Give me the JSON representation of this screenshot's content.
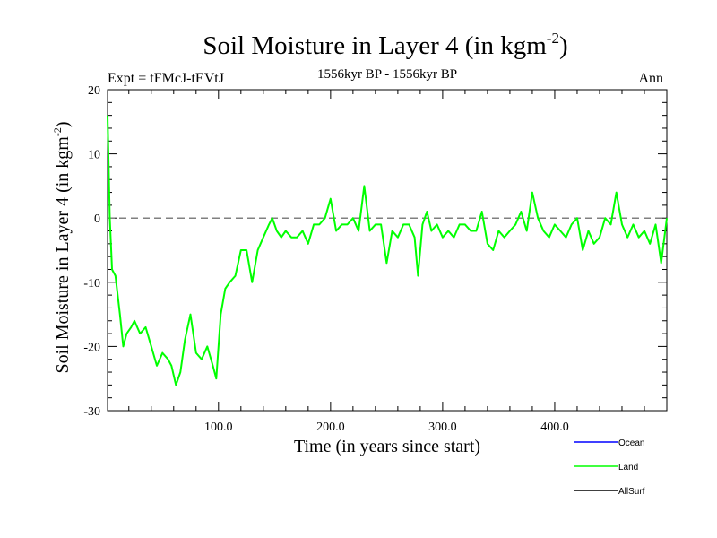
{
  "chart_data": {
    "type": "line",
    "title": "Soil Moisture in Layer 4 (in kgm",
    "title_sup": "-2",
    "title_close": ")",
    "subtitle_left": "Expt = tFMcJ-tEVtJ",
    "subtitle_center": "1556kyr BP - 1556kyr BP",
    "subtitle_right": "Ann",
    "xlabel": "Time (in years since start)",
    "ylabel": "Soil Moisture in Layer 4 (in kgm",
    "ylabel_sup": "-2",
    "ylabel_close": ")",
    "xlim": [
      1,
      500
    ],
    "ylim": [
      -30,
      20
    ],
    "x_ticks": [
      100,
      200,
      300,
      400
    ],
    "x_tick_labels": [
      "100.0",
      "200.0",
      "300.0",
      "400.0"
    ],
    "y_ticks": [
      -30,
      -20,
      -10,
      0,
      10,
      20
    ],
    "y_tick_labels": [
      "-30",
      "-20",
      "-10",
      "0",
      "10",
      "20"
    ],
    "reference_line": 0,
    "legend": [
      {
        "name": "Ocean",
        "color": "#0000ff"
      },
      {
        "name": "Land",
        "color": "#00ff00"
      },
      {
        "name": "AllSurf",
        "color": "#000000"
      }
    ],
    "series": [
      {
        "name": "Land",
        "color": "#00ff00",
        "x": [
          1,
          3,
          5,
          8,
          12,
          15,
          18,
          22,
          25,
          30,
          35,
          40,
          45,
          50,
          55,
          58,
          62,
          66,
          70,
          75,
          80,
          85,
          90,
          95,
          98,
          102,
          106,
          110,
          115,
          120,
          125,
          130,
          135,
          140,
          145,
          148,
          152,
          156,
          160,
          165,
          170,
          175,
          180,
          185,
          190,
          195,
          200,
          205,
          210,
          215,
          220,
          225,
          230,
          235,
          240,
          245,
          250,
          255,
          260,
          265,
          270,
          275,
          278,
          282,
          286,
          290,
          295,
          300,
          305,
          310,
          315,
          320,
          325,
          330,
          335,
          340,
          345,
          350,
          355,
          360,
          365,
          370,
          375,
          380,
          385,
          390,
          395,
          400,
          405,
          410,
          415,
          420,
          425,
          430,
          435,
          440,
          445,
          450,
          455,
          460,
          465,
          470,
          475,
          480,
          485,
          490,
          495,
          500
        ],
        "values": [
          16,
          0,
          -8,
          -9,
          -15,
          -20,
          -18,
          -17,
          -16,
          -18,
          -17,
          -20,
          -23,
          -21,
          -22,
          -23,
          -26,
          -24,
          -19,
          -15,
          -21,
          -22,
          -20,
          -23,
          -25,
          -15,
          -11,
          -10,
          -9,
          -5,
          -5,
          -10,
          -5,
          -3,
          -1,
          0,
          -2,
          -3,
          -2,
          -3,
          -3,
          -2,
          -4,
          -1,
          -1,
          0,
          3,
          -2,
          -1,
          -1,
          0,
          -2,
          5,
          -2,
          -1,
          -1,
          -7,
          -2,
          -3,
          -1,
          -1,
          -3,
          -9,
          -1,
          1,
          -2,
          -1,
          -3,
          -2,
          -3,
          -1,
          -1,
          -2,
          -2,
          1,
          -4,
          -5,
          -2,
          -3,
          -2,
          -1,
          1,
          -2,
          4,
          0,
          -2,
          -3,
          -1,
          -2,
          -3,
          -1,
          0,
          -5,
          -2,
          -4,
          -3,
          0,
          -1,
          4,
          -1,
          -3,
          -1,
          -3,
          -2,
          -4,
          -1,
          -7,
          0
        ]
      }
    ]
  }
}
